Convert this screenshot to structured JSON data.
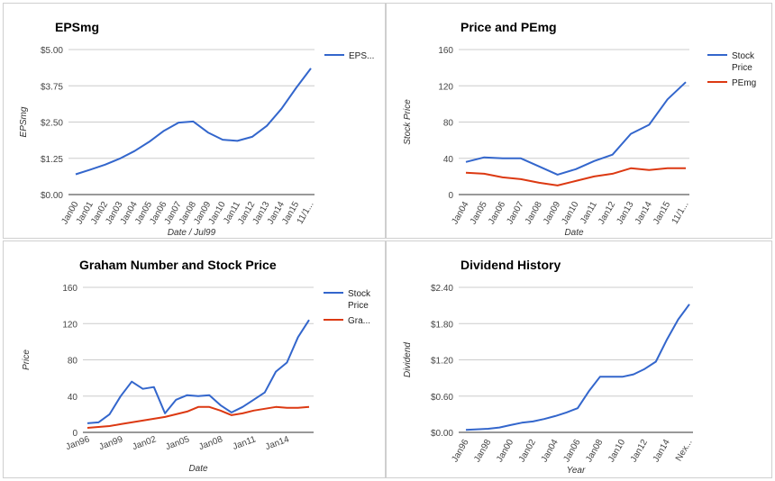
{
  "chart_data": [
    {
      "type": "line",
      "title": "EPSmg",
      "xlabel": "Date / Jul99",
      "ylabel": "EPSmg",
      "ylim": [
        0,
        5
      ],
      "yticks": [
        "$0.00",
        "$1.25",
        "$2.50",
        "$3.75",
        "$5.00"
      ],
      "ytick_values": [
        0,
        1.25,
        2.5,
        3.75,
        5
      ],
      "categories": [
        "Jan00",
        "Jan01",
        "Jan02",
        "Jan03",
        "Jan04",
        "Jan05",
        "Jan06",
        "Jan07",
        "Jan08",
        "Jan09",
        "Jan10",
        "Jan11",
        "Jan12",
        "Jan13",
        "Jan14",
        "Jan15",
        "11/1..."
      ],
      "series": [
        {
          "name": "EPS...",
          "color": "#3366cc",
          "values": [
            0.7,
            0.86,
            1.03,
            1.24,
            1.5,
            1.82,
            2.2,
            2.48,
            2.52,
            2.14,
            1.89,
            1.85,
            1.99,
            2.37,
            2.96,
            3.68,
            4.35
          ]
        }
      ],
      "legend": "right",
      "grid": true
    },
    {
      "type": "line",
      "title": "Price and PEmg",
      "xlabel": "Date",
      "ylabel": "Stock Price",
      "ylim": [
        0,
        160
      ],
      "yticks": [
        "0",
        "40",
        "80",
        "120",
        "160"
      ],
      "ytick_values": [
        0,
        40,
        80,
        120,
        160
      ],
      "categories": [
        "Jan04",
        "Jan05",
        "Jan06",
        "Jan07",
        "Jan08",
        "Jan09",
        "Jan10",
        "Jan11",
        "Jan12",
        "Jan13",
        "Jan14",
        "Jan15",
        "11/1..."
      ],
      "series": [
        {
          "name": "Stock Price",
          "color": "#3366cc",
          "values": [
            36,
            41,
            40,
            40,
            31,
            22,
            28,
            37,
            44,
            67,
            77,
            105,
            124
          ]
        },
        {
          "name": "PEmg",
          "color": "#dc3912",
          "values": [
            24,
            23,
            19,
            17,
            13,
            10,
            15,
            20,
            23,
            29,
            27,
            29,
            29
          ]
        }
      ],
      "legend": "right",
      "grid": true
    },
    {
      "type": "line",
      "title": "Graham Number and Stock Price",
      "xlabel": "Date",
      "ylabel": "Price",
      "ylim": [
        0,
        160
      ],
      "yticks": [
        "0",
        "40",
        "80",
        "120",
        "160"
      ],
      "ytick_values": [
        0,
        40,
        80,
        120,
        160
      ],
      "x": [
        1996,
        1997,
        1998,
        1999,
        2000,
        2001,
        2002,
        2003,
        2004,
        2005,
        2006,
        2007,
        2008,
        2009,
        2010,
        2011,
        2012,
        2013,
        2014,
        2015,
        2016
      ],
      "xticks": [
        "Jan96",
        "Jan99",
        "Jan02",
        "Jan05",
        "Jan08",
        "Jan11",
        "Jan14"
      ],
      "xtick_values": [
        1996,
        1999,
        2002,
        2005,
        2008,
        2011,
        2014
      ],
      "series": [
        {
          "name": "Stock Price",
          "color": "#3366cc",
          "values": [
            10,
            11,
            20,
            40,
            56,
            48,
            50,
            21,
            36,
            41,
            40,
            41,
            30,
            22,
            28,
            36,
            44,
            67,
            77,
            105,
            124
          ]
        },
        {
          "name": "Gra...",
          "color": "#dc3912",
          "values": [
            5,
            6,
            7,
            9,
            11,
            13,
            15,
            17,
            20,
            23,
            28,
            28,
            24,
            19,
            21,
            24,
            26,
            28,
            27,
            27,
            28
          ]
        }
      ],
      "legend": "right",
      "grid": true
    },
    {
      "type": "line",
      "title": "Dividend History",
      "xlabel": "Year",
      "ylabel": "Dividend",
      "ylim": [
        0,
        2.4
      ],
      "yticks": [
        "$0.00",
        "$0.60",
        "$1.20",
        "$1.80",
        "$2.40"
      ],
      "ytick_values": [
        0,
        0.6,
        1.2,
        1.8,
        2.4
      ],
      "categories": [
        "Jan96",
        "Jan97",
        "Jan98",
        "Jan99",
        "Jan00",
        "Jan01",
        "Jan02",
        "Jan03",
        "Jan04",
        "Jan05",
        "Jan06",
        "Jan07",
        "Jan08",
        "Jan09",
        "Jan10",
        "Jan11",
        "Jan12",
        "Jan13",
        "Jan14",
        "Jan15",
        "Nex..."
      ],
      "tick_labels": [
        "Jan96",
        "Jan98",
        "Jan00",
        "Jan02",
        "Jan04",
        "Jan06",
        "Jan08",
        "Jan10",
        "Jan12",
        "Jan14",
        "Nex..."
      ],
      "series": [
        {
          "name": "Dividend",
          "color": "#3366cc",
          "values": [
            0.04,
            0.05,
            0.06,
            0.08,
            0.12,
            0.16,
            0.18,
            0.22,
            0.27,
            0.33,
            0.4,
            0.68,
            0.92,
            0.92,
            0.92,
            0.96,
            1.05,
            1.17,
            1.54,
            1.87,
            2.12
          ]
        }
      ],
      "legend": "none",
      "grid": true
    }
  ]
}
